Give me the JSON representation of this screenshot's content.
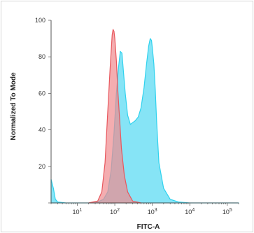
{
  "chart_data": {
    "type": "area",
    "title": "",
    "xlabel": "FITC-A",
    "ylabel": "Normalized To Mode",
    "x_scale": "log",
    "xlim": [
      2,
      200000
    ],
    "ylim": [
      0,
      100
    ],
    "x_tick_labels": [
      {
        "value": 10,
        "base": "10",
        "exp": "1"
      },
      {
        "value": 100,
        "base": "10",
        "exp": "2"
      },
      {
        "value": 1000,
        "base": "10",
        "exp": "3"
      },
      {
        "value": 10000,
        "base": "10",
        "exp": "4"
      },
      {
        "value": 100000,
        "base": "10",
        "exp": "5"
      }
    ],
    "y_ticks": [
      0,
      20,
      40,
      60,
      80,
      100
    ],
    "y_tick_labels": [
      "20",
      "40",
      "60",
      "80",
      "100"
    ],
    "grid": false,
    "legend": "none",
    "series": [
      {
        "color": "#2fd2ee",
        "fill": "#7fe3f5",
        "x": [
          2,
          2.3,
          2.6,
          3,
          5,
          10,
          20,
          35,
          50,
          65,
          80,
          95,
          110,
          125,
          140,
          155,
          170,
          190,
          220,
          260,
          300,
          350,
          420,
          500,
          600,
          700,
          800,
          880,
          950,
          1000,
          1100,
          1200,
          1300,
          1500,
          2000,
          3000,
          5000,
          10000,
          50000,
          200000
        ],
        "values": [
          13,
          8,
          2,
          0.5,
          0,
          0,
          0,
          0.5,
          2,
          6,
          18,
          38,
          60,
          74,
          83,
          82,
          72,
          60,
          48,
          43,
          44,
          45,
          47,
          52,
          63,
          76,
          86,
          90,
          89,
          85,
          76,
          62,
          45,
          22,
          8,
          2,
          0.5,
          0,
          0,
          0
        ]
      },
      {
        "color": "#e8575d",
        "fill": "#f08a8f",
        "x": [
          20,
          35,
          45,
          55,
          65,
          75,
          85,
          90,
          95,
          100,
          110,
          120,
          135,
          150,
          180,
          220,
          300,
          500
        ],
        "values": [
          0,
          1,
          6,
          22,
          50,
          74,
          92,
          95,
          94,
          90,
          78,
          62,
          45,
          30,
          15,
          6,
          1,
          0
        ]
      }
    ]
  }
}
